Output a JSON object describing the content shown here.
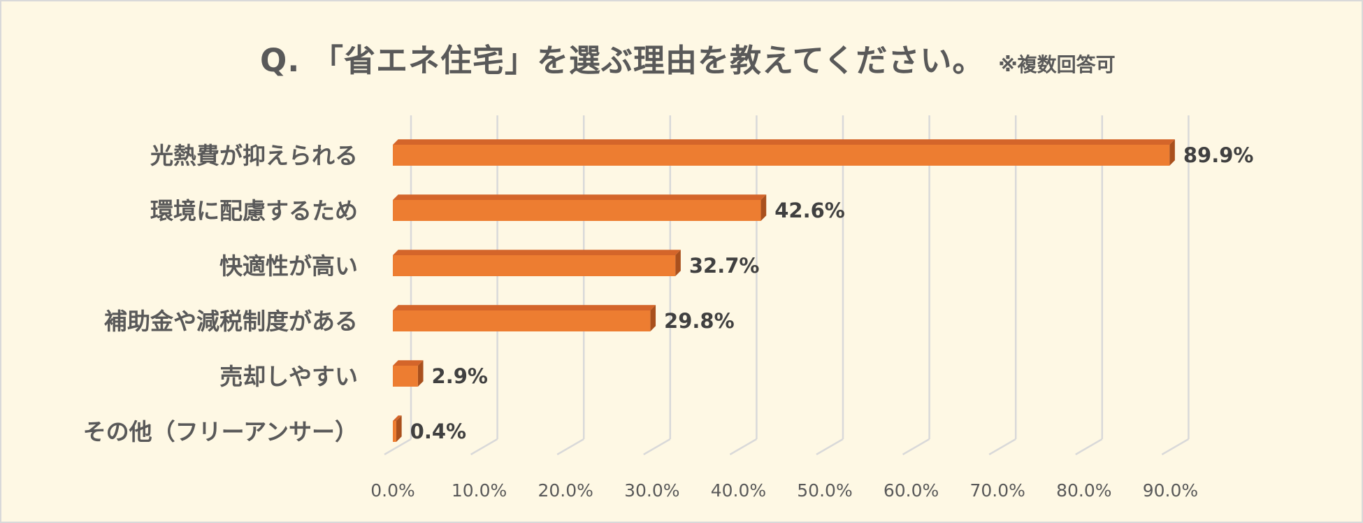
{
  "chart_data": {
    "type": "bar",
    "orientation": "horizontal",
    "title": "Q. 「省エネ住宅」を選ぶ理由を教えてください。",
    "subtitle": "※複数回答可",
    "categories": [
      "光熱費が抑えられる",
      "環境に配慮するため",
      "快適性が高い",
      "補助金や減税制度がある",
      "売却しやすい",
      "その他（フリーアンサー）"
    ],
    "values": [
      89.9,
      42.6,
      32.7,
      29.8,
      2.9,
      0.4
    ],
    "value_labels": [
      "89.9%",
      "42.6%",
      "32.7%",
      "29.8%",
      "2.9%",
      "0.4%"
    ],
    "xlim": [
      0,
      90
    ],
    "ticks": [
      0,
      10,
      20,
      30,
      40,
      50,
      60,
      70,
      80,
      90
    ],
    "tick_labels": [
      "0.0%",
      "10.0%",
      "20.0%",
      "30.0%",
      "40.0%",
      "50.0%",
      "60.0%",
      "70.0%",
      "80.0%",
      "90.0%"
    ],
    "grid": true,
    "legend": "none",
    "bar_color": "#ed7d31",
    "bar_top_color": "#d4652a",
    "bar_side_color": "#a9501d",
    "grid_color": "#d9d9d9"
  }
}
